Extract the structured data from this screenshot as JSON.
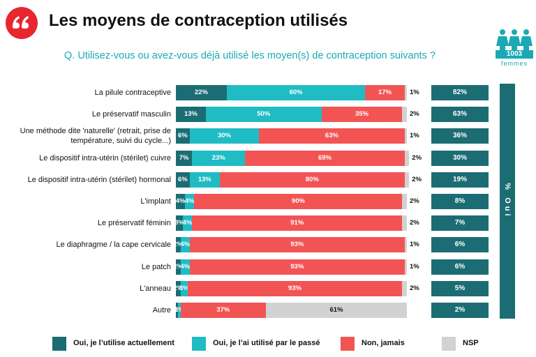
{
  "chart_data": {
    "type": "bar",
    "orientation": "horizontal",
    "stacked": true,
    "title": "Les moyens de contraception utilisés",
    "subtitle": "Q. Utilisez-vous ou avez-vous déjà utilisé les moyen(s) de contraception suivants ?",
    "sample_size": 1003,
    "sample_label": "femmes",
    "categories": [
      "La pilule contraceptive",
      "Le préservatif masculin",
      "Une méthode dite 'naturelle' (retrait, prise de température, suivi du cycle...)",
      "Le dispositif intra-utérin (stérilet) cuivre",
      "Le dispositif intra-utérin (stérilet) hormonal",
      "L'implant",
      "Le préservatif féminin",
      "Le diaphragme / la cape cervicale",
      "Le patch",
      "L'anneau",
      "Autre"
    ],
    "series": [
      {
        "name": "Oui, je l’utilise actuellement",
        "color": "#1b6d73",
        "values": [
          22,
          13,
          6,
          7,
          6,
          4,
          3,
          2,
          2,
          2,
          1
        ],
        "value_labels": [
          "22%",
          "13%",
          "6%",
          "7%",
          "6%",
          "4%",
          "3%",
          "2%",
          "2%",
          "2%",
          "1%"
        ]
      },
      {
        "name": "Oui, je l’ai utilisé par le passé",
        "color": "#1fbcc4",
        "values": [
          60,
          50,
          30,
          23,
          13,
          4,
          4,
          4,
          4,
          3,
          1
        ],
        "value_labels": [
          "60%",
          "50%",
          "30%",
          "23%",
          "13%",
          "4%",
          "4%",
          "4%",
          "4%",
          "3%",
          "1%"
        ]
      },
      {
        "name": "Non, jamais",
        "color": "#f25454",
        "values": [
          17,
          35,
          63,
          69,
          80,
          90,
          91,
          93,
          93,
          93,
          37
        ],
        "value_labels": [
          "17%",
          "35%",
          "63%",
          "69%",
          "80%",
          "90%",
          "91%",
          "93%",
          "93%",
          "93%",
          "37%"
        ]
      },
      {
        "name": "NSP",
        "color": "#d2d2d2",
        "values": [
          1,
          2,
          1,
          2,
          2,
          2,
          2,
          1,
          1,
          2,
          61
        ],
        "value_labels": [
          "1%",
          "2%",
          "1%",
          "2%",
          "2%",
          "2%",
          "2%",
          "1%",
          "1%",
          "2%",
          "61%"
        ]
      }
    ],
    "summary": {
      "title": "% Oui",
      "color": "#1b6d73",
      "values": [
        82,
        63,
        36,
        30,
        19,
        8,
        7,
        6,
        6,
        5,
        2
      ],
      "value_labels": [
        "82%",
        "63%",
        "36%",
        "30%",
        "19%",
        "8%",
        "7%",
        "6%",
        "6%",
        "5%",
        "2%"
      ]
    }
  }
}
